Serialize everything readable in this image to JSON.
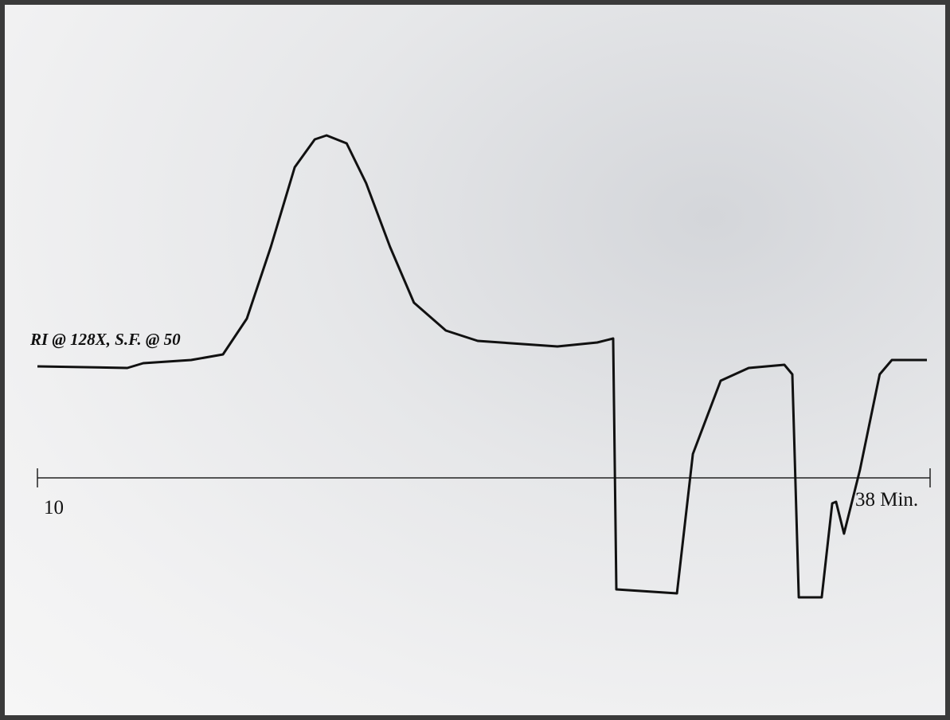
{
  "chart_data": {
    "type": "line",
    "annotation": "RI @ 128X, S.F. @ 50",
    "x": [
      10,
      12.82,
      13.32,
      14.82,
      15.82,
      16.57,
      17.32,
      18.07,
      18.7,
      19.07,
      19.7,
      20.31,
      21.06,
      21.81,
      22.81,
      23.81,
      26.31,
      27.56,
      28.06,
      28.16,
      30.06,
      30.56,
      31.43,
      32.31,
      33.43,
      33.68,
      33.88,
      34.6,
      34.93,
      35.05,
      35.3,
      35.8,
      36.42,
      36.8,
      37.9
    ],
    "values": [
      1.4,
      1.38,
      1.44,
      1.48,
      1.55,
      2.0,
      2.9,
      3.9,
      4.25,
      4.3,
      4.2,
      3.7,
      2.9,
      2.2,
      1.85,
      1.72,
      1.65,
      1.7,
      1.75,
      -1.4,
      -1.45,
      0.3,
      1.22,
      1.38,
      1.42,
      1.3,
      -1.5,
      -1.5,
      -0.32,
      -0.3,
      -0.7,
      0.1,
      1.3,
      1.48,
      1.48
    ],
    "color": "#111111",
    "xlim": [
      10,
      38
    ],
    "xticks": [
      10,
      {
        "value": 38,
        "label": "38 Min."
      }
    ],
    "ylim": [
      -1.9,
      4.5
    ]
  }
}
